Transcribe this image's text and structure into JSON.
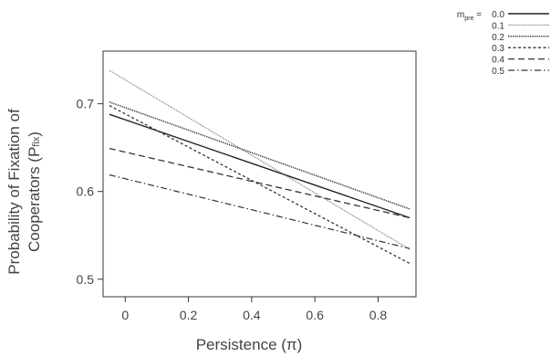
{
  "chart_data": {
    "type": "line",
    "xlabel": "Persistence (π)",
    "ylabel_line1": "Probability of Fixation of",
    "ylabel_line2": "Cooperators (P",
    "ylabel_sub": "fix",
    "ylabel_close": ")",
    "xlim": [
      -0.07,
      0.92
    ],
    "ylim": [
      0.48,
      0.76
    ],
    "xticks": [
      0,
      0.2,
      0.4,
      0.6,
      0.8
    ],
    "xtick_labels": [
      "0",
      "0.2",
      "0.4",
      "0.6",
      "0.8"
    ],
    "yticks": [
      0.5,
      0.6,
      0.7
    ],
    "ytick_labels": [
      "0.5",
      "0.6",
      "0.7"
    ],
    "legend": {
      "title_prefix": "m",
      "title_sub": "pre",
      "title_suffix": " = ",
      "placement": "top-right outside"
    },
    "series": [
      {
        "name": "0.0",
        "style": "solid",
        "x": [
          -0.05,
          0.9
        ],
        "y": [
          0.688,
          0.57
        ]
      },
      {
        "name": "0.1",
        "style": "fine-dotted",
        "x": [
          -0.05,
          0.9
        ],
        "y": [
          0.738,
          0.534
        ]
      },
      {
        "name": "0.2",
        "style": "dotted",
        "x": [
          -0.05,
          0.9
        ],
        "y": [
          0.702,
          0.58
        ]
      },
      {
        "name": "0.3",
        "style": "short-dash",
        "x": [
          -0.05,
          0.9
        ],
        "y": [
          0.698,
          0.518
        ]
      },
      {
        "name": "0.4",
        "style": "long-dash",
        "x": [
          -0.05,
          0.9
        ],
        "y": [
          0.649,
          0.57
        ]
      },
      {
        "name": "0.5",
        "style": "dash-dot",
        "x": [
          -0.05,
          0.9
        ],
        "y": [
          0.619,
          0.535
        ]
      }
    ]
  }
}
